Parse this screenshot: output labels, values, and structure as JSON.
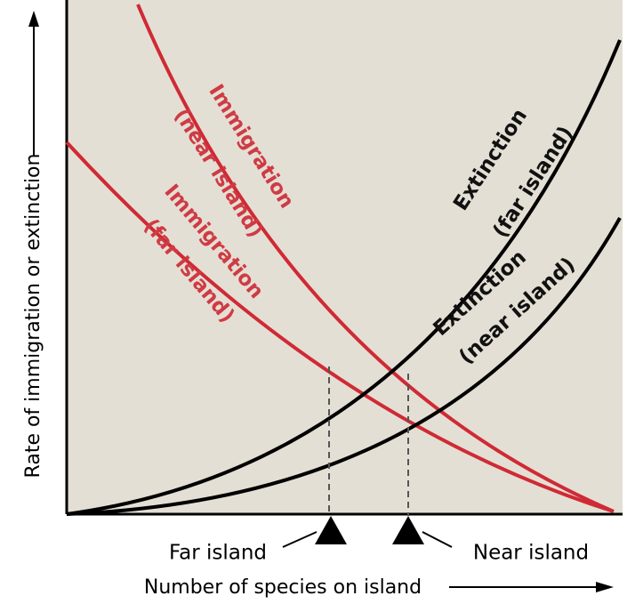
{
  "y_axis_label": "Rate of immigration or extinction",
  "x_axis_label": "Number of species on island",
  "curves": [
    {
      "name": "Immigration",
      "qualifier": "(near island)"
    },
    {
      "name": "Immigration",
      "qualifier": "(far island)"
    },
    {
      "name": "Extinction",
      "qualifier": "(far island)"
    },
    {
      "name": "Extinction",
      "qualifier": "(near island)"
    }
  ],
  "markers": {
    "far": "Far island",
    "near": "Near island"
  }
}
